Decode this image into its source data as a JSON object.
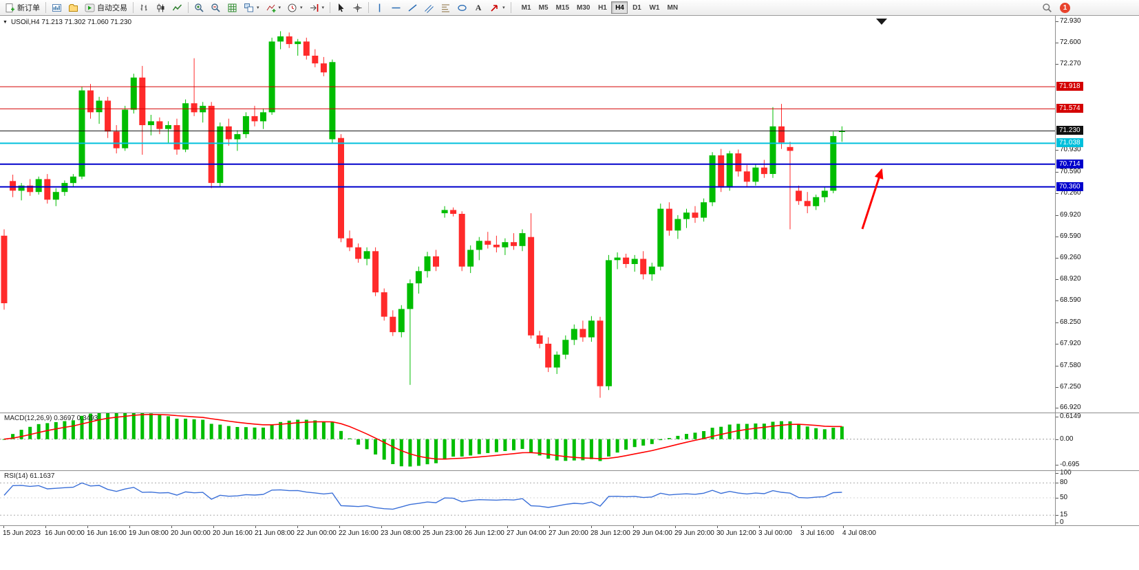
{
  "glyphs": {
    "symbol_collapse": "▼",
    "caret": "▾",
    "text_tool": "A"
  },
  "toolbar": {
    "new_order_label": "新订单",
    "autotrade_label": "自动交易",
    "timeframes": [
      "M1",
      "M5",
      "M15",
      "M30",
      "H1",
      "H4",
      "D1",
      "W1",
      "MN"
    ],
    "active_timeframe": "H4",
    "notification_badge": "1",
    "badge_color": "#e8432d"
  },
  "chart": {
    "symbol_line": "USOil,H4 71.213 71.302 71.060 71.230"
  },
  "chart_data": {
    "type": "candlestick",
    "title": "USOil H4",
    "symbol": "USOil",
    "timeframe": "H4",
    "current_bar": {
      "open": 71.213,
      "high": 71.302,
      "low": 71.06,
      "close": 71.23
    },
    "price_range": [
      66.85,
      73.02
    ],
    "colors": {
      "up": "#00bd00",
      "down": "#ff2a2a",
      "macd_hist": "#00bd00",
      "macd_signal": "#ff0000",
      "rsi_line": "#3a6fd8",
      "bid_line": "#111111"
    },
    "price_axis_ticks": [
      "72.930",
      "72.600",
      "72.270",
      "70.930",
      "70.590",
      "70.260",
      "69.920",
      "69.590",
      "69.260",
      "68.920",
      "68.590",
      "68.250",
      "67.920",
      "67.580",
      "67.250",
      "66.920"
    ],
    "levels": [
      {
        "label": "71.918",
        "price": 71.918,
        "color": "#d40000",
        "line_width": 1
      },
      {
        "label": "71.574",
        "price": 71.574,
        "color": "#d40000",
        "line_width": 1
      },
      {
        "label": "71.230",
        "price": 71.23,
        "color": "#111111",
        "line_width": 1
      },
      {
        "label": "71.038",
        "price": 71.038,
        "color": "#00c0dc",
        "line_width": 2
      },
      {
        "label": "70.714",
        "price": 70.714,
        "color": "#0000cc",
        "line_width": 2
      },
      {
        "label": "70.360",
        "price": 70.36,
        "color": "#0000cc",
        "line_width": 2
      }
    ],
    "time_labels": [
      "15 Jun 2023",
      "16 Jun 00:00",
      "16 Jun 16:00",
      "19 Jun 08:00",
      "20 Jun 00:00",
      "20 Jun 16:00",
      "21 Jun 08:00",
      "22 Jun 00:00",
      "22 Jun 16:00",
      "23 Jun 08:00",
      "25 Jun 23:00",
      "26 Jun 12:00",
      "27 Jun 04:00",
      "27 Jun 20:00",
      "28 Jun 12:00",
      "29 Jun 04:00",
      "29 Jun 20:00",
      "30 Jun 12:00",
      "3 Jul 00:00",
      "3 Jul 16:00",
      "4 Jul 08:00"
    ],
    "ohlc": [
      [
        69.6,
        69.7,
        68.45,
        68.55
      ],
      [
        70.45,
        70.55,
        70.2,
        70.3
      ],
      [
        70.3,
        70.42,
        70.15,
        70.38
      ],
      [
        70.38,
        70.48,
        70.22,
        70.28
      ],
      [
        70.28,
        70.52,
        70.24,
        70.48
      ],
      [
        70.48,
        70.56,
        70.1,
        70.16
      ],
      [
        70.16,
        70.34,
        70.06,
        70.28
      ],
      [
        70.28,
        70.46,
        70.22,
        70.42
      ],
      [
        70.42,
        70.56,
        70.36,
        70.52
      ],
      [
        70.52,
        71.92,
        70.48,
        71.86
      ],
      [
        71.86,
        71.96,
        71.42,
        71.52
      ],
      [
        71.52,
        71.76,
        71.34,
        71.7
      ],
      [
        71.7,
        71.76,
        71.12,
        71.22
      ],
      [
        71.22,
        71.32,
        70.88,
        70.96
      ],
      [
        70.96,
        71.62,
        70.92,
        71.56
      ],
      [
        71.56,
        72.12,
        71.5,
        72.06
      ],
      [
        72.06,
        72.24,
        70.86,
        71.32
      ],
      [
        71.32,
        71.48,
        71.16,
        71.38
      ],
      [
        71.38,
        71.44,
        71.18,
        71.26
      ],
      [
        71.26,
        71.38,
        71.04,
        71.32
      ],
      [
        71.32,
        71.42,
        70.86,
        70.94
      ],
      [
        70.94,
        71.72,
        70.9,
        71.66
      ],
      [
        71.66,
        72.36,
        71.46,
        71.52
      ],
      [
        71.52,
        71.68,
        71.36,
        71.62
      ],
      [
        71.62,
        71.68,
        70.34,
        70.42
      ],
      [
        70.42,
        71.36,
        70.36,
        71.3
      ],
      [
        71.3,
        71.42,
        71.0,
        71.1
      ],
      [
        71.1,
        71.24,
        70.92,
        71.18
      ],
      [
        71.18,
        71.52,
        71.12,
        71.46
      ],
      [
        71.46,
        71.62,
        71.3,
        71.38
      ],
      [
        71.38,
        71.58,
        71.26,
        71.52
      ],
      [
        71.52,
        72.68,
        71.48,
        72.62
      ],
      [
        72.62,
        72.78,
        72.5,
        72.7
      ],
      [
        72.7,
        72.76,
        72.52,
        72.58
      ],
      [
        72.58,
        72.66,
        72.4,
        72.62
      ],
      [
        72.62,
        72.68,
        72.34,
        72.4
      ],
      [
        72.4,
        72.5,
        72.22,
        72.28
      ],
      [
        72.28,
        72.38,
        72.08,
        72.14
      ],
      [
        71.1,
        72.34,
        71.04,
        72.3
      ],
      [
        71.12,
        71.18,
        69.5,
        69.56
      ],
      [
        69.56,
        69.68,
        69.36,
        69.42
      ],
      [
        69.42,
        69.48,
        69.18,
        69.24
      ],
      [
        69.24,
        69.42,
        69.14,
        69.36
      ],
      [
        69.36,
        69.42,
        68.66,
        68.72
      ],
      [
        68.72,
        68.78,
        68.28,
        68.34
      ],
      [
        68.34,
        68.44,
        68.04,
        68.1
      ],
      [
        68.1,
        68.52,
        68.02,
        68.46
      ],
      [
        68.46,
        68.92,
        67.28,
        68.86
      ],
      [
        68.86,
        69.12,
        68.7,
        69.05
      ],
      [
        69.05,
        69.35,
        68.95,
        69.28
      ],
      [
        69.28,
        69.38,
        69.05,
        69.12
      ],
      [
        69.95,
        70.06,
        69.88,
        70.0
      ],
      [
        70.0,
        70.04,
        69.9,
        69.94
      ],
      [
        69.94,
        69.98,
        69.05,
        69.12
      ],
      [
        69.12,
        69.45,
        69.02,
        69.38
      ],
      [
        69.38,
        69.58,
        69.22,
        69.52
      ],
      [
        69.52,
        69.66,
        69.4,
        69.46
      ],
      [
        69.46,
        69.6,
        69.34,
        69.42
      ],
      [
        69.42,
        69.56,
        69.3,
        69.5
      ],
      [
        69.5,
        69.64,
        69.38,
        69.44
      ],
      [
        69.44,
        69.7,
        69.36,
        69.64
      ],
      [
        69.58,
        69.95,
        68.0,
        68.05
      ],
      [
        68.05,
        68.12,
        67.85,
        67.92
      ],
      [
        67.92,
        68.02,
        67.48,
        67.55
      ],
      [
        67.55,
        67.8,
        67.45,
        67.75
      ],
      [
        67.75,
        68.05,
        67.68,
        67.98
      ],
      [
        67.98,
        68.22,
        67.9,
        68.15
      ],
      [
        68.15,
        68.28,
        67.95,
        68.02
      ],
      [
        68.02,
        68.35,
        67.95,
        68.28
      ],
      [
        68.28,
        68.34,
        67.08,
        67.26
      ],
      [
        67.26,
        69.3,
        67.2,
        69.22
      ],
      [
        69.22,
        69.34,
        69.08,
        69.26
      ],
      [
        69.26,
        69.32,
        69.1,
        69.16
      ],
      [
        69.16,
        69.3,
        69.04,
        69.24
      ],
      [
        69.24,
        69.36,
        68.92,
        69.0
      ],
      [
        69.0,
        69.18,
        68.9,
        69.12
      ],
      [
        69.12,
        70.1,
        69.06,
        70.02
      ],
      [
        70.02,
        70.12,
        69.6,
        69.68
      ],
      [
        69.68,
        69.92,
        69.55,
        69.86
      ],
      [
        69.86,
        70.02,
        69.72,
        69.96
      ],
      [
        69.96,
        70.06,
        69.8,
        69.88
      ],
      [
        69.88,
        70.18,
        69.82,
        70.12
      ],
      [
        70.12,
        70.9,
        70.06,
        70.85
      ],
      [
        70.85,
        70.95,
        70.28,
        70.35
      ],
      [
        70.35,
        70.92,
        70.3,
        70.88
      ],
      [
        70.88,
        70.94,
        70.52,
        70.6
      ],
      [
        70.6,
        70.7,
        70.36,
        70.44
      ],
      [
        70.44,
        70.72,
        70.38,
        70.66
      ],
      [
        70.66,
        70.78,
        70.5,
        70.56
      ],
      [
        70.56,
        71.6,
        70.5,
        71.3
      ],
      [
        71.3,
        71.65,
        70.95,
        71.05
      ],
      [
        70.98,
        71.06,
        69.7,
        70.92
      ],
      [
        70.3,
        70.38,
        70.08,
        70.14
      ],
      [
        70.14,
        70.28,
        69.95,
        70.06
      ],
      [
        70.06,
        70.24,
        70.0,
        70.2
      ],
      [
        70.2,
        70.36,
        70.12,
        70.3
      ],
      [
        70.3,
        71.22,
        70.26,
        71.15
      ],
      [
        71.213,
        71.302,
        71.06,
        71.23
      ]
    ],
    "macd": {
      "label": "MACD(12,26,9) 0.3697 0.3493",
      "params": [
        12,
        26,
        9
      ],
      "values_text": [
        "0.3697",
        "0.3493"
      ],
      "axis_ticks": [
        "0.6149",
        "0.00",
        "-0.695"
      ],
      "range": [
        -0.84,
        0.7
      ]
    },
    "rsi": {
      "label": "RSI(14) 61.1637",
      "period": 14,
      "value_text": "61.1637",
      "axis_ticks": [
        "100",
        "80",
        "50",
        "15",
        "0"
      ],
      "levels": [
        80,
        15
      ],
      "range": [
        0,
        100
      ]
    },
    "annotations": [
      {
        "type": "arrow",
        "color": "#ff0000",
        "from_xy": [
          1253,
          310
        ],
        "to_xy": [
          1281,
          224
        ]
      }
    ]
  }
}
